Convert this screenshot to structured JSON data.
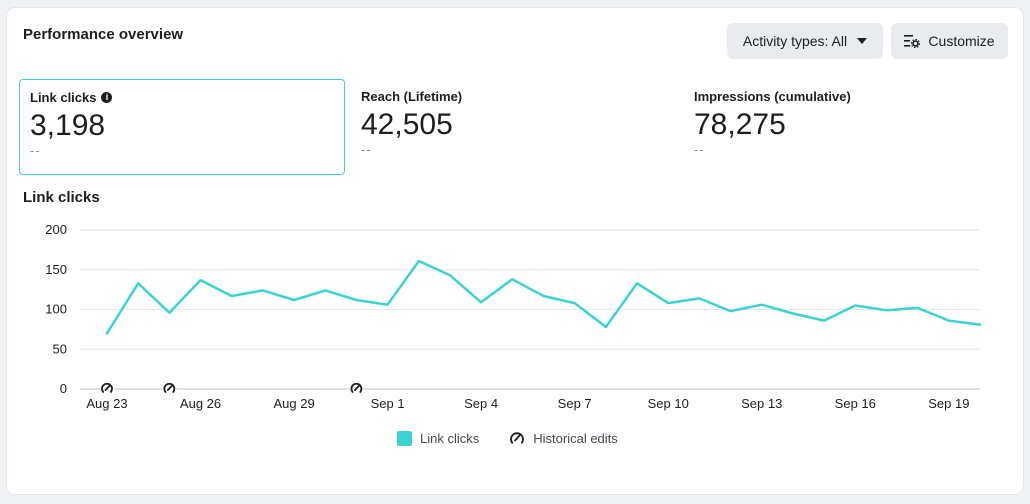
{
  "header": {
    "title": "Performance overview",
    "activity_button": "Activity types: All",
    "customize_button": "Customize"
  },
  "metrics": [
    {
      "label": "Link clicks",
      "value": "3,198",
      "delta": "--",
      "selected": true
    },
    {
      "label": "Reach (Lifetime)",
      "value": "42,505",
      "delta": "--"
    },
    {
      "label": "Impressions (cumulative)",
      "value": "78,275",
      "delta": "--"
    }
  ],
  "chart_data": {
    "type": "line",
    "title": "Link clicks",
    "ylim": [
      0,
      200
    ],
    "y_ticks": [
      0,
      50,
      100,
      150,
      200
    ],
    "x_ticks": [
      "Aug 23",
      "Aug 26",
      "Aug 29",
      "Sep 1",
      "Sep 4",
      "Sep 7",
      "Sep 10",
      "Sep 13",
      "Sep 16",
      "Sep 19"
    ],
    "x": [
      "Aug 23",
      "Aug 24",
      "Aug 25",
      "Aug 26",
      "Aug 27",
      "Aug 28",
      "Aug 29",
      "Aug 30",
      "Aug 31",
      "Sep 1",
      "Sep 2",
      "Sep 3",
      "Sep 4",
      "Sep 5",
      "Sep 6",
      "Sep 7",
      "Sep 8",
      "Sep 9",
      "Sep 10",
      "Sep 11",
      "Sep 12",
      "Sep 13",
      "Sep 14",
      "Sep 15",
      "Sep 16",
      "Sep 17",
      "Sep 18",
      "Sep 19",
      "Sep 20"
    ],
    "series": [
      {
        "name": "Link clicks",
        "color": "#3ad3d3",
        "values": [
          70,
          133,
          96,
          137,
          117,
          124,
          112,
          124,
          112,
          106,
          161,
          143,
          109,
          138,
          117,
          108,
          78,
          133,
          108,
          114,
          98,
          106,
          95,
          86,
          105,
          99,
          102,
          86,
          81
        ]
      }
    ],
    "historical_edits": [
      "Aug 23",
      "Aug 25",
      "Aug 31"
    ],
    "grid": true,
    "legend": "bottom-center"
  },
  "legend": {
    "series_label": "Link clicks",
    "edits_label": "Historical edits"
  }
}
